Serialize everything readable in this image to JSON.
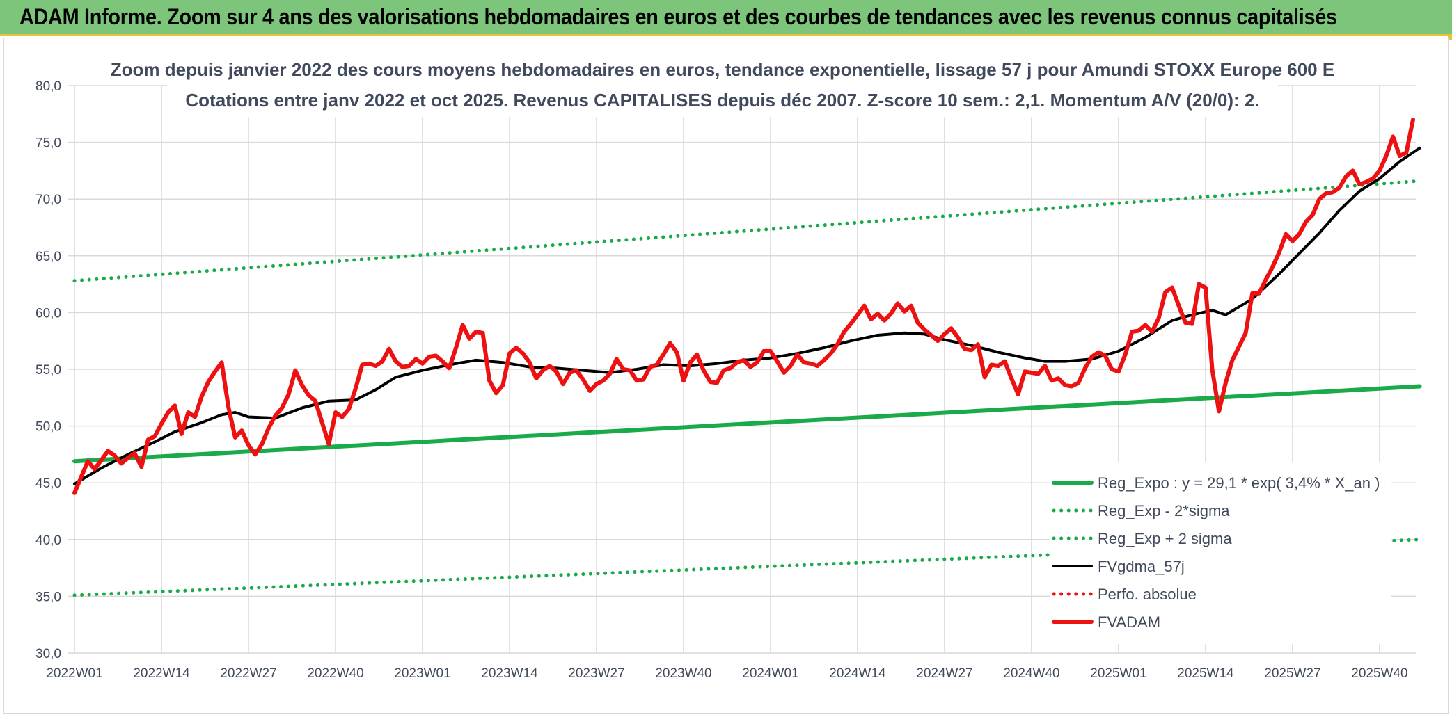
{
  "header": {
    "title": "ADAM Informe. Zoom sur 4 ans des valorisations hebdomadaires en euros et des courbes de tendances avec les revenus connus capitalisés"
  },
  "colors": {
    "header_bg": "#7dc57a",
    "trend": "#1aaa4a",
    "smooth": "#000000",
    "price": "#ee1111",
    "perfo": "#ee1111",
    "grid": "#d9d9d9"
  },
  "chart_data": {
    "type": "line",
    "title": "Zoom depuis janvier 2022 des cours moyens hebdomadaires en euros, tendance exponentielle, lissage 57 j pour Amundi STOXX Europe 600 E",
    "subtitle": "Cotations entre janv 2022 et oct 2025. Revenus CAPITALISES depuis déc 2007. Z-score 10 sem.: 2,1. Momentum A/V (20/0): 2.",
    "xlabel": "",
    "ylabel": "",
    "ylim": [
      30,
      80
    ],
    "yticks": [
      "30,0",
      "35,0",
      "40,0",
      "45,0",
      "50,0",
      "55,0",
      "60,0",
      "65,0",
      "70,0",
      "75,0",
      "80,0"
    ],
    "xticks": [
      {
        "label": "2022W01",
        "week": 0
      },
      {
        "label": "2022W14",
        "week": 13
      },
      {
        "label": "2022W27",
        "week": 26
      },
      {
        "label": "2022W40",
        "week": 39
      },
      {
        "label": "2023W01",
        "week": 52
      },
      {
        "label": "2023W14",
        "week": 65
      },
      {
        "label": "2023W27",
        "week": 78
      },
      {
        "label": "2023W40",
        "week": 91
      },
      {
        "label": "2024W01",
        "week": 104
      },
      {
        "label": "2024W14",
        "week": 117
      },
      {
        "label": "2024W27",
        "week": 130
      },
      {
        "label": "2024W40",
        "week": 143
      },
      {
        "label": "2025W01",
        "week": 156
      },
      {
        "label": "2025W14",
        "week": 169
      },
      {
        "label": "2025W27",
        "week": 182
      },
      {
        "label": "2025W40",
        "week": 195
      }
    ],
    "grid": true,
    "legend_position": "bottom-right",
    "series": [
      {
        "name": "Reg_Expo : y = 29,1 * exp( 3,4% *  X_an )",
        "style": "solid-thick",
        "color": "#1aaa4a",
        "points": [
          [
            0,
            46.9
          ],
          [
            201,
            53.5
          ]
        ]
      },
      {
        "name": "Reg_Exp - 2*sigma",
        "style": "dotted",
        "color": "#1aaa4a",
        "points": [
          [
            0,
            35.1
          ],
          [
            201,
            40.0
          ]
        ]
      },
      {
        "name": "Reg_Exp + 2 sigma",
        "style": "dotted",
        "color": "#1aaa4a",
        "points": [
          [
            0,
            62.8
          ],
          [
            201,
            71.6
          ]
        ]
      },
      {
        "name": "FVgdma_57j",
        "style": "solid",
        "color": "#000000",
        "points": [
          [
            0,
            44.9
          ],
          [
            4,
            46.3
          ],
          [
            8,
            47.5
          ],
          [
            12,
            48.6
          ],
          [
            15,
            49.5
          ],
          [
            19,
            50.3
          ],
          [
            22,
            51.0
          ],
          [
            24,
            51.2
          ],
          [
            26,
            50.8
          ],
          [
            30,
            50.7
          ],
          [
            34,
            51.6
          ],
          [
            38,
            52.2
          ],
          [
            42,
            52.3
          ],
          [
            45,
            53.2
          ],
          [
            48,
            54.3
          ],
          [
            52,
            54.9
          ],
          [
            56,
            55.4
          ],
          [
            60,
            55.8
          ],
          [
            64,
            55.6
          ],
          [
            68,
            55.2
          ],
          [
            72,
            55.1
          ],
          [
            76,
            54.9
          ],
          [
            80,
            54.7
          ],
          [
            84,
            55.0
          ],
          [
            88,
            55.4
          ],
          [
            92,
            55.3
          ],
          [
            96,
            55.5
          ],
          [
            100,
            55.8
          ],
          [
            104,
            56.0
          ],
          [
            108,
            56.4
          ],
          [
            112,
            56.9
          ],
          [
            116,
            57.5
          ],
          [
            120,
            58.0
          ],
          [
            124,
            58.2
          ],
          [
            127,
            58.1
          ],
          [
            130,
            57.6
          ],
          [
            134,
            57.1
          ],
          [
            138,
            56.5
          ],
          [
            142,
            56.0
          ],
          [
            145,
            55.7
          ],
          [
            148,
            55.7
          ],
          [
            152,
            55.9
          ],
          [
            156,
            56.6
          ],
          [
            160,
            57.8
          ],
          [
            164,
            59.3
          ],
          [
            167,
            59.8
          ],
          [
            170,
            60.2
          ],
          [
            172,
            59.8
          ],
          [
            176,
            61.2
          ],
          [
            180,
            63.4
          ],
          [
            183,
            65.2
          ],
          [
            186,
            67.0
          ],
          [
            189,
            69.0
          ],
          [
            192,
            70.7
          ],
          [
            195,
            71.8
          ],
          [
            198,
            73.3
          ],
          [
            201,
            74.5
          ]
        ]
      },
      {
        "name": "Perfo. absolue",
        "style": "dotted",
        "color": "#ee1111",
        "points": []
      },
      {
        "name": "FVADAM",
        "style": "solid-thick",
        "color": "#ee1111",
        "points": [
          [
            0,
            44.1
          ],
          [
            2,
            46.9
          ],
          [
            3,
            46.2
          ],
          [
            4,
            47.0
          ],
          [
            5,
            47.8
          ],
          [
            6,
            47.4
          ],
          [
            7,
            46.7
          ],
          [
            8,
            47.2
          ],
          [
            9,
            47.6
          ],
          [
            10,
            46.4
          ],
          [
            11,
            48.8
          ],
          [
            12,
            49.1
          ],
          [
            13,
            50.2
          ],
          [
            14,
            51.2
          ],
          [
            15,
            51.8
          ],
          [
            16,
            49.3
          ],
          [
            17,
            51.2
          ],
          [
            18,
            50.8
          ],
          [
            19,
            52.6
          ],
          [
            20,
            53.9
          ],
          [
            21,
            54.8
          ],
          [
            22,
            55.6
          ],
          [
            23,
            51.7
          ],
          [
            24,
            49.0
          ],
          [
            25,
            49.6
          ],
          [
            26,
            48.3
          ],
          [
            27,
            47.5
          ],
          [
            28,
            48.4
          ],
          [
            29,
            49.8
          ],
          [
            30,
            50.9
          ],
          [
            31,
            51.6
          ],
          [
            32,
            52.8
          ],
          [
            33,
            54.9
          ],
          [
            34,
            53.6
          ],
          [
            35,
            52.7
          ],
          [
            36,
            52.2
          ],
          [
            37,
            50.3
          ],
          [
            38,
            48.4
          ],
          [
            39,
            51.2
          ],
          [
            40,
            50.8
          ],
          [
            41,
            51.5
          ],
          [
            42,
            53.3
          ],
          [
            43,
            55.4
          ],
          [
            44,
            55.5
          ],
          [
            45,
            55.3
          ],
          [
            46,
            55.7
          ],
          [
            47,
            56.8
          ],
          [
            48,
            55.7
          ],
          [
            49,
            55.2
          ],
          [
            50,
            55.3
          ],
          [
            51,
            55.9
          ],
          [
            52,
            55.5
          ],
          [
            53,
            56.1
          ],
          [
            54,
            56.2
          ],
          [
            55,
            55.7
          ],
          [
            56,
            55.1
          ],
          [
            57,
            56.9
          ],
          [
            58,
            58.9
          ],
          [
            59,
            57.7
          ],
          [
            60,
            58.3
          ],
          [
            61,
            58.2
          ],
          [
            62,
            54.0
          ],
          [
            63,
            52.9
          ],
          [
            64,
            53.6
          ],
          [
            65,
            56.4
          ],
          [
            66,
            56.9
          ],
          [
            67,
            56.4
          ],
          [
            68,
            55.6
          ],
          [
            69,
            54.2
          ],
          [
            70,
            54.9
          ],
          [
            71,
            55.3
          ],
          [
            72,
            54.8
          ],
          [
            73,
            53.7
          ],
          [
            74,
            54.7
          ],
          [
            75,
            54.9
          ],
          [
            76,
            54.1
          ],
          [
            77,
            53.1
          ],
          [
            78,
            53.7
          ],
          [
            79,
            54.0
          ],
          [
            80,
            54.6
          ],
          [
            81,
            55.9
          ],
          [
            82,
            55.0
          ],
          [
            83,
            54.9
          ],
          [
            84,
            54.0
          ],
          [
            85,
            54.1
          ],
          [
            86,
            55.2
          ],
          [
            87,
            55.4
          ],
          [
            88,
            56.3
          ],
          [
            89,
            57.3
          ],
          [
            90,
            56.5
          ],
          [
            91,
            54.0
          ],
          [
            92,
            55.6
          ],
          [
            93,
            56.3
          ],
          [
            94,
            54.9
          ],
          [
            95,
            53.9
          ],
          [
            96,
            53.8
          ],
          [
            97,
            54.9
          ],
          [
            98,
            55.1
          ],
          [
            99,
            55.6
          ],
          [
            100,
            55.8
          ],
          [
            101,
            55.2
          ],
          [
            102,
            55.6
          ],
          [
            103,
            56.6
          ],
          [
            104,
            56.6
          ],
          [
            105,
            55.7
          ],
          [
            106,
            54.7
          ],
          [
            107,
            55.3
          ],
          [
            108,
            56.3
          ],
          [
            109,
            55.6
          ],
          [
            110,
            55.5
          ],
          [
            111,
            55.3
          ],
          [
            112,
            55.8
          ],
          [
            113,
            56.4
          ],
          [
            114,
            57.2
          ],
          [
            115,
            58.3
          ],
          [
            116,
            59.0
          ],
          [
            117,
            59.8
          ],
          [
            118,
            60.6
          ],
          [
            119,
            59.4
          ],
          [
            120,
            59.9
          ],
          [
            121,
            59.3
          ],
          [
            122,
            59.9
          ],
          [
            123,
            60.8
          ],
          [
            124,
            60.1
          ],
          [
            125,
            60.6
          ],
          [
            126,
            59.1
          ],
          [
            127,
            58.5
          ],
          [
            128,
            58.0
          ],
          [
            129,
            57.5
          ],
          [
            130,
            58.1
          ],
          [
            131,
            58.6
          ],
          [
            132,
            57.8
          ],
          [
            133,
            56.8
          ],
          [
            134,
            56.7
          ],
          [
            135,
            57.2
          ],
          [
            136,
            54.3
          ],
          [
            137,
            55.4
          ],
          [
            138,
            55.3
          ],
          [
            139,
            55.7
          ],
          [
            140,
            54.2
          ],
          [
            141,
            52.8
          ],
          [
            142,
            54.8
          ],
          [
            143,
            54.7
          ],
          [
            144,
            54.6
          ],
          [
            145,
            55.3
          ],
          [
            146,
            54.0
          ],
          [
            147,
            54.2
          ],
          [
            148,
            53.6
          ],
          [
            149,
            53.5
          ],
          [
            150,
            53.8
          ],
          [
            151,
            55.1
          ],
          [
            152,
            56.1
          ],
          [
            153,
            56.5
          ],
          [
            154,
            56.2
          ],
          [
            155,
            55.0
          ],
          [
            156,
            54.8
          ],
          [
            157,
            56.3
          ],
          [
            158,
            58.3
          ],
          [
            159,
            58.4
          ],
          [
            160,
            58.9
          ],
          [
            161,
            58.3
          ],
          [
            162,
            59.5
          ],
          [
            163,
            61.8
          ],
          [
            164,
            62.2
          ],
          [
            165,
            60.6
          ],
          [
            166,
            59.1
          ],
          [
            167,
            59.0
          ],
          [
            168,
            62.5
          ],
          [
            169,
            62.2
          ],
          [
            170,
            55.0
          ],
          [
            171,
            51.3
          ],
          [
            172,
            53.8
          ],
          [
            173,
            55.8
          ],
          [
            174,
            57.0
          ],
          [
            175,
            58.2
          ],
          [
            176,
            61.7
          ],
          [
            177,
            61.7
          ],
          [
            178,
            62.9
          ],
          [
            179,
            64.0
          ],
          [
            180,
            65.3
          ],
          [
            181,
            66.9
          ],
          [
            182,
            66.3
          ],
          [
            183,
            66.9
          ],
          [
            184,
            68.0
          ],
          [
            185,
            68.6
          ],
          [
            186,
            70.0
          ],
          [
            187,
            70.5
          ],
          [
            188,
            70.6
          ],
          [
            189,
            71.0
          ],
          [
            190,
            72.0
          ],
          [
            191,
            72.5
          ],
          [
            192,
            71.3
          ],
          [
            193,
            71.5
          ],
          [
            194,
            71.8
          ],
          [
            195,
            72.5
          ],
          [
            196,
            73.8
          ],
          [
            197,
            75.5
          ],
          [
            198,
            73.8
          ],
          [
            199,
            74.1
          ],
          [
            200,
            77.0
          ]
        ]
      }
    ]
  }
}
